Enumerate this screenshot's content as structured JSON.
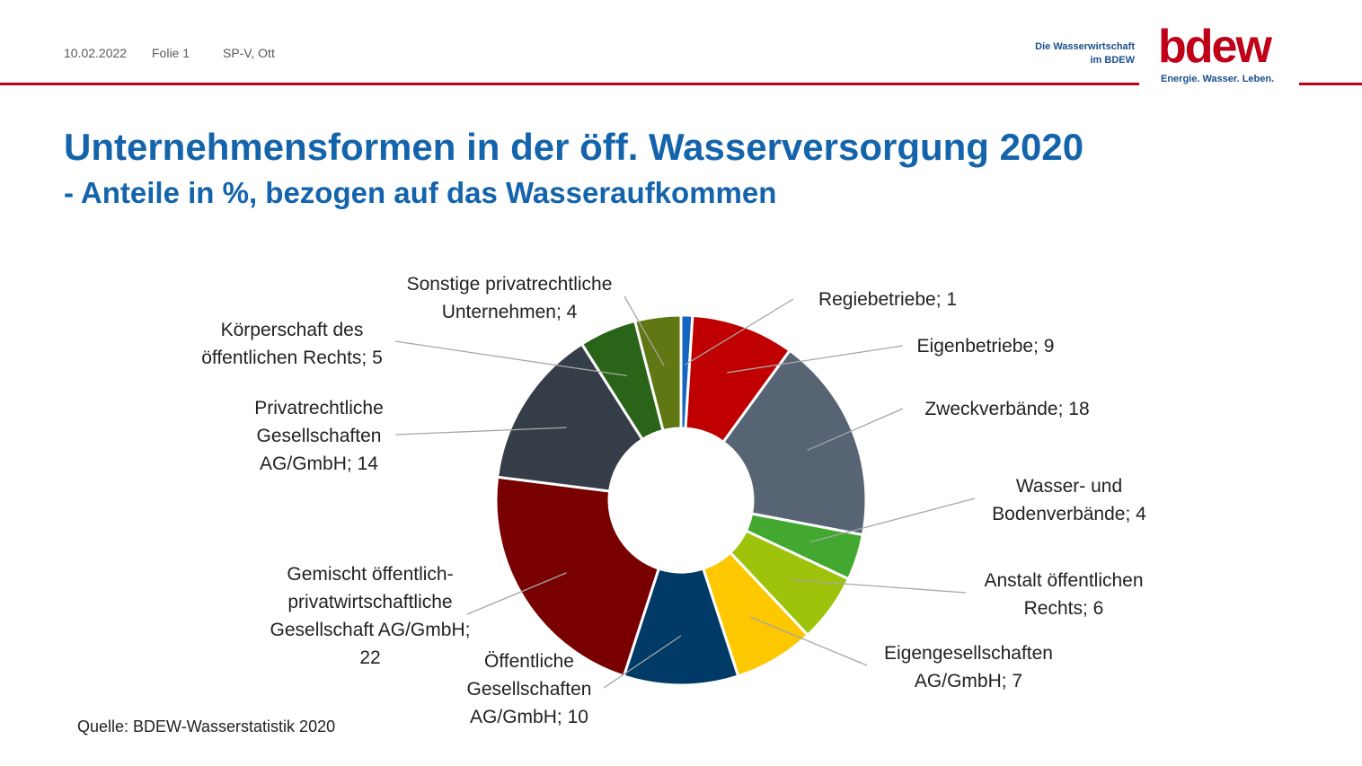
{
  "header": {
    "date": "10.02.2022",
    "slide": "Folie 1",
    "author": "SP-V, Ott",
    "org_line1": "Die Wasserwirtschaft",
    "org_line2": "im BDEW",
    "logo_text": "bdew",
    "logo_tagline": "Energie. Wasser. Leben.",
    "accent_color": "#c00018",
    "brand_blue": "#1464ac"
  },
  "title": "Unternehmensformen in der öff. Wasserversorgung 2020",
  "subtitle": "- Anteile in %, bezogen auf das Wasseraufkommen",
  "source": "Quelle: BDEW-Wasserstatistik 2020",
  "chart_data": {
    "type": "pie",
    "variant": "donut",
    "unit": "%",
    "slices": [
      {
        "name": "Regiebetriebe",
        "value": 1,
        "color": "#1565c0",
        "label_lines": [
          "Regiebetriebe; 1"
        ]
      },
      {
        "name": "Eigenbetriebe",
        "value": 9,
        "color": "#c00000",
        "label_lines": [
          "Eigenbetriebe; 9"
        ]
      },
      {
        "name": "Zweckverbände",
        "value": 18,
        "color": "#566473",
        "label_lines": [
          "Zweckverbände; 18"
        ]
      },
      {
        "name": "Wasser- und Bodenverbände",
        "value": 4,
        "color": "#42a830",
        "label_lines": [
          "Wasser- und",
          "Bodenverbände; 4"
        ]
      },
      {
        "name": "Anstalt öffentlichen Rechts",
        "value": 6,
        "color": "#9dc30a",
        "label_lines": [
          "Anstalt öffentlichen",
          "Rechts; 6"
        ]
      },
      {
        "name": "Eigengesellschaften AG/GmbH",
        "value": 7,
        "color": "#fdc800",
        "label_lines": [
          "Eigengesellschaften",
          "AG/GmbH; 7"
        ]
      },
      {
        "name": "Öffentliche Gesellschaften AG/GmbH",
        "value": 10,
        "color": "#003a66",
        "label_lines": [
          "Öffentliche",
          "Gesellschaften",
          "AG/GmbH; 10"
        ]
      },
      {
        "name": "Gemischt öffentlich-privatwirtschaftliche Gesellschaft AG/GmbH",
        "value": 22,
        "color": "#780000",
        "label_lines": [
          "Gemischt öffentlich-",
          "privatwirtschaftliche",
          "Gesellschaft AG/GmbH;",
          "22"
        ]
      },
      {
        "name": "Privatrechtliche Gesellschaften AG/GmbH",
        "value": 14,
        "color": "#353e48",
        "label_lines": [
          "Privatrechtliche",
          "Gesellschaften",
          "AG/GmbH; 14"
        ]
      },
      {
        "name": "Körperschaft des öffentlichen Rechts",
        "value": 5,
        "color": "#2a6418",
        "label_lines": [
          "Körperschaft des",
          "öffentlichen Rechts; 5"
        ]
      },
      {
        "name": "Sonstige privatrechtliche Unternehmen",
        "value": 4,
        "color": "#5f7814",
        "label_lines": [
          "Sonstige privatrechtliche",
          "Unternehmen; 4"
        ]
      }
    ]
  }
}
